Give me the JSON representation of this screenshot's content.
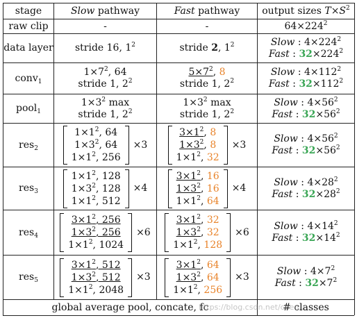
{
  "header": {
    "stage": "stage",
    "slow_it": "Slow",
    "slow_rest": " pathway",
    "fast_it": "Fast",
    "fast_rest": " pathway",
    "out": "output sizes ",
    "out_T": "T",
    "out_times": "×",
    "out_S": "S",
    "out_sq": "2"
  },
  "rows": {
    "raw_clip": {
      "stage": "raw clip",
      "slow": "-",
      "fast": "-",
      "out_a": "64×224",
      "out_sq": "2"
    },
    "data_layer": {
      "stage": "data layer",
      "slow": "stride 16, 1",
      "slow_sq": "2",
      "fast_a": "stride ",
      "fast_b": "2",
      "fast_c": ", 1",
      "fast_sq": "2",
      "out1_lbl": "Slow",
      "out1_val": " : 4×224",
      "out1_sq": "2",
      "out2_lbl": "Fast",
      "out2_col": " : ",
      "out2_green": "32",
      "out2_val": "×224",
      "out2_sq": "2"
    },
    "conv1": {
      "stage": "conv",
      "stage_sub": "1",
      "slow1": "1×7",
      "slow1_sq": "2",
      "slow1_b": ", 64",
      "slow2": "stride 1, 2",
      "slow2_sq": "2",
      "fast1": "5×7",
      "fast1_sq": "2",
      "fast1_c": ", ",
      "fast1_o": "8",
      "fast2": "stride 1, 2",
      "fast2_sq": "2",
      "out1_lbl": "Slow",
      "out1_val": " : 4×112",
      "out1_sq": "2",
      "out2_lbl": "Fast",
      "out2_col": " : ",
      "out2_green": "32",
      "out2_val": "×112",
      "out2_sq": "2"
    },
    "pool1": {
      "stage": "pool",
      "stage_sub": "1",
      "slow1": "1×3",
      "slow1_sq": "2",
      "slow1_b": " max",
      "slow2": "stride 1, 2",
      "slow2_sq": "2",
      "fast1": "1×3",
      "fast1_sq": "2",
      "fast1_b": " max",
      "fast2": "stride 1, 2",
      "fast2_sq": "2",
      "out1_lbl": "Slow",
      "out1_val": " : 4×56",
      "out1_sq": "2",
      "out2_lbl": "Fast",
      "out2_col": " : ",
      "out2_green": "32",
      "out2_val": "×56",
      "out2_sq": "2"
    },
    "res2": {
      "stage": "res",
      "stage_sub": "2",
      "s1": "1×1",
      "s1v": ", 64",
      "s2": "1×3",
      "s2v": ", 64",
      "s3": "1×1",
      "s3v": ", 256",
      "s_mul": "×3",
      "f1": "3×1",
      "f1v": "8",
      "f2": "1×3",
      "f2v": "8",
      "f3": "1×1",
      "f3v": "32",
      "f_mul": "×3",
      "sq": "2",
      "comma": ", ",
      "out1_lbl": "Slow",
      "out1_val": " : 4×56",
      "out1_sq": "2",
      "out2_lbl": "Fast",
      "out2_col": " : ",
      "out2_green": "32",
      "out2_val": "×56",
      "out2_sq": "2"
    },
    "res3": {
      "stage": "res",
      "stage_sub": "3",
      "s1": "1×1",
      "s1v": ", 128",
      "s2": "1×3",
      "s2v": ", 128",
      "s3": "1×1",
      "s3v": ", 512",
      "s_mul": "×4",
      "f1": "3×1",
      "f1v": "16",
      "f2": "1×3",
      "f2v": "16",
      "f3": "1×1",
      "f3v": "64",
      "f_mul": "×4",
      "sq": "2",
      "comma": ", ",
      "out1_lbl": "Slow",
      "out1_val": " : 4×28",
      "out1_sq": "2",
      "out2_lbl": "Fast",
      "out2_col": " : ",
      "out2_green": "32",
      "out2_val": "×28",
      "out2_sq": "2"
    },
    "res4": {
      "stage": "res",
      "stage_sub": "4",
      "s1": "3×1",
      "s1v": ", 256",
      "s2": "1×3",
      "s2v": ", 256",
      "s3": "1×1",
      "s3v": ", 1024",
      "s_mul": "×6",
      "f1": "3×1",
      "f1v": "32",
      "f2": "1×3",
      "f2v": "32",
      "f3": "1×1",
      "f3v": "128",
      "f_mul": "×6",
      "sq": "2",
      "comma": ", ",
      "out1_lbl": "Slow",
      "out1_val": " : 4×14",
      "out1_sq": "2",
      "out2_lbl": "Fast",
      "out2_col": " : ",
      "out2_green": "32",
      "out2_val": "×14",
      "out2_sq": "2"
    },
    "res5": {
      "stage": "res",
      "stage_sub": "5",
      "s1": "3×1",
      "s1v": ", 512",
      "s2": "1×3",
      "s2v": ", 512",
      "s3": "1×1",
      "s3v": ", 2048",
      "s_mul": "×3",
      "f1": "3×1",
      "f1v": "64",
      "f2": "1×3",
      "f2v": "64",
      "f3": "1×1",
      "f3v": "256",
      "f_mul": "×3",
      "sq": "2",
      "comma": ", ",
      "out1_lbl": "Slow",
      "out1_val": " : 4×7",
      "out1_sq": "2",
      "out2_lbl": "Fast",
      "out2_col": " : ",
      "out2_green": "32",
      "out2_val": "×7",
      "out2_sq": "2"
    },
    "final": {
      "left": "global average pool, concate, fc",
      "right": "# classes"
    }
  },
  "watermark": "https://blog.csdn.net/chen..."
}
